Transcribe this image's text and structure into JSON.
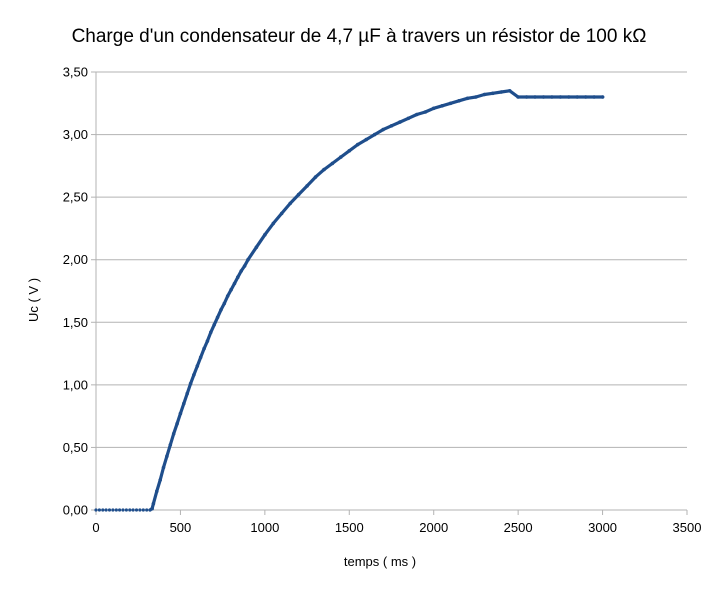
{
  "chart_data": {
    "type": "scatter",
    "title": "Charge d'un condensateur de 4,7 µF à travers un résistor de 100 kΩ",
    "xlabel": "temps ( ms )",
    "ylabel": "Uc ( V )",
    "xlim": [
      0,
      3500
    ],
    "ylim": [
      0,
      3.5
    ],
    "x_ticks": [
      {
        "value": 0,
        "label": "0"
      },
      {
        "value": 500,
        "label": "500"
      },
      {
        "value": 1000,
        "label": "1000"
      },
      {
        "value": 1500,
        "label": "1500"
      },
      {
        "value": 2000,
        "label": "2000"
      },
      {
        "value": 2500,
        "label": "2500"
      },
      {
        "value": 3000,
        "label": "3000"
      },
      {
        "value": 3500,
        "label": "3500"
      }
    ],
    "y_ticks": [
      {
        "value": 0,
        "label": "0,00"
      },
      {
        "value": 0.5,
        "label": "0,50"
      },
      {
        "value": 1.0,
        "label": "1,00"
      },
      {
        "value": 1.5,
        "label": "1,50"
      },
      {
        "value": 2.0,
        "label": "2,00"
      },
      {
        "value": 2.5,
        "label": "2,50"
      },
      {
        "value": 3.0,
        "label": "3,00"
      },
      {
        "value": 3.5,
        "label": "3,50"
      }
    ],
    "grid": {
      "horizontal": true,
      "vertical": false
    },
    "legend": "none",
    "colors": {
      "series": "#1f4e8c",
      "grid": "#b3b3b3",
      "axis": "#b3b3b3"
    },
    "series": [
      {
        "points": [
          [
            0,
            0
          ],
          [
            20,
            0
          ],
          [
            40,
            0
          ],
          [
            60,
            0
          ],
          [
            80,
            0
          ],
          [
            100,
            0
          ],
          [
            120,
            0
          ],
          [
            140,
            0
          ],
          [
            160,
            0
          ],
          [
            180,
            0
          ],
          [
            200,
            0
          ],
          [
            220,
            0
          ],
          [
            240,
            0
          ],
          [
            260,
            0
          ],
          [
            280,
            0
          ],
          [
            300,
            0
          ],
          [
            320,
            0
          ],
          [
            332,
            0.01
          ],
          [
            340,
            0.05
          ],
          [
            360,
            0.15
          ],
          [
            380,
            0.24
          ],
          [
            400,
            0.34
          ],
          [
            420,
            0.43
          ],
          [
            440,
            0.52
          ],
          [
            460,
            0.61
          ],
          [
            480,
            0.69
          ],
          [
            500,
            0.77
          ],
          [
            520,
            0.85
          ],
          [
            540,
            0.93
          ],
          [
            560,
            1.01
          ],
          [
            580,
            1.08
          ],
          [
            600,
            1.15
          ],
          [
            620,
            1.22
          ],
          [
            640,
            1.29
          ],
          [
            660,
            1.35
          ],
          [
            680,
            1.42
          ],
          [
            700,
            1.48
          ],
          [
            720,
            1.54
          ],
          [
            740,
            1.6
          ],
          [
            760,
            1.65
          ],
          [
            780,
            1.71
          ],
          [
            800,
            1.76
          ],
          [
            820,
            1.81
          ],
          [
            840,
            1.86
          ],
          [
            860,
            1.91
          ],
          [
            880,
            1.95
          ],
          [
            900,
            2.0
          ],
          [
            950,
            2.1
          ],
          [
            1000,
            2.2
          ],
          [
            1050,
            2.29
          ],
          [
            1100,
            2.37
          ],
          [
            1150,
            2.45
          ],
          [
            1200,
            2.52
          ],
          [
            1250,
            2.59
          ],
          [
            1300,
            2.66
          ],
          [
            1350,
            2.72
          ],
          [
            1400,
            2.77
          ],
          [
            1450,
            2.82
          ],
          [
            1500,
            2.87
          ],
          [
            1550,
            2.92
          ],
          [
            1600,
            2.96
          ],
          [
            1650,
            3.0
          ],
          [
            1700,
            3.04
          ],
          [
            1750,
            3.07
          ],
          [
            1800,
            3.1
          ],
          [
            1850,
            3.13
          ],
          [
            1900,
            3.16
          ],
          [
            1950,
            3.18
          ],
          [
            2000,
            3.21
          ],
          [
            2050,
            3.23
          ],
          [
            2100,
            3.25
          ],
          [
            2150,
            3.27
          ],
          [
            2200,
            3.29
          ],
          [
            2250,
            3.3
          ],
          [
            2300,
            3.32
          ],
          [
            2350,
            3.33
          ],
          [
            2400,
            3.34
          ],
          [
            2450,
            3.35
          ],
          [
            2500,
            3.3
          ],
          [
            2550,
            3.3
          ],
          [
            2600,
            3.3
          ],
          [
            2650,
            3.3
          ],
          [
            2700,
            3.3
          ],
          [
            2750,
            3.3
          ],
          [
            2800,
            3.3
          ],
          [
            2850,
            3.3
          ],
          [
            2900,
            3.3
          ],
          [
            2950,
            3.3
          ],
          [
            3000,
            3.3
          ]
        ]
      }
    ]
  }
}
